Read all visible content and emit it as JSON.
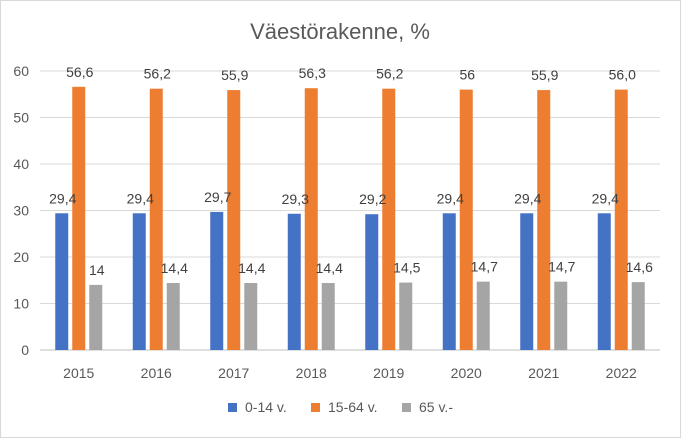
{
  "chart_data": {
    "type": "bar",
    "title": "Väestörakenne, %",
    "categories": [
      "2015",
      "2016",
      "2017",
      "2018",
      "2019",
      "2020",
      "2021",
      "2022"
    ],
    "ylim": [
      0,
      60
    ],
    "yticks": [
      "0",
      "10",
      "20",
      "30",
      "40",
      "50",
      "60"
    ],
    "grid": true,
    "legend_position": "bottom",
    "series": [
      {
        "name": "0-14 v.",
        "color": "#4472c4",
        "values": [
          29.4,
          29.4,
          29.7,
          29.3,
          29.2,
          29.4,
          29.4,
          29.4
        ],
        "labels": [
          "29,4",
          "29,4",
          "29,7",
          "29,3",
          "29,2",
          "29,4",
          "29,4",
          "29,4"
        ]
      },
      {
        "name": "15-64 v.",
        "color": "#ed7d31",
        "values": [
          56.6,
          56.2,
          55.9,
          56.3,
          56.2,
          56.0,
          55.9,
          56.0
        ],
        "labels": [
          "56,6",
          "56,2",
          "55,9",
          "56,3",
          "56,2",
          "56",
          "55,9",
          "56,0"
        ]
      },
      {
        "name": "65 v.-",
        "color": "#a5a5a5",
        "values": [
          14.0,
          14.4,
          14.4,
          14.4,
          14.5,
          14.7,
          14.7,
          14.6
        ],
        "labels": [
          "14",
          "14,4",
          "14,4",
          "14,4",
          "14,5",
          "14,7",
          "14,7",
          "14,6"
        ]
      }
    ]
  }
}
